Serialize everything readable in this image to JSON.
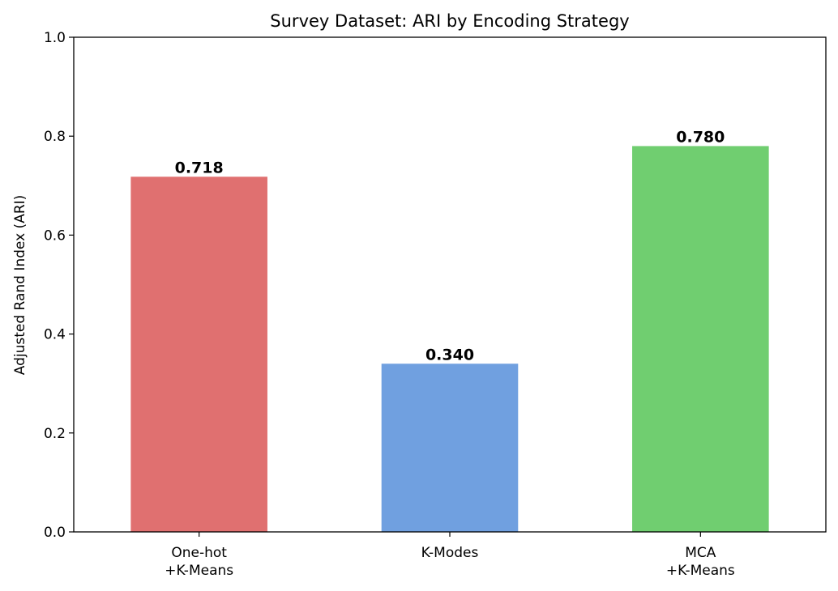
{
  "chart_data": {
    "type": "bar",
    "title": "Survey Dataset: ARI by Encoding Strategy",
    "xlabel": "",
    "ylabel": "Adjusted Rand Index (ARI)",
    "ylim": [
      0,
      1.0
    ],
    "yticks": [
      0.0,
      0.2,
      0.4,
      0.6,
      0.8,
      1.0
    ],
    "ytick_labels": [
      "0.0",
      "0.2",
      "0.4",
      "0.6",
      "0.8",
      "1.0"
    ],
    "categories": [
      [
        "One-hot",
        "+K-Means"
      ],
      [
        "K-Modes"
      ],
      [
        "MCA",
        "+K-Means"
      ]
    ],
    "values": [
      0.718,
      0.34,
      0.78
    ],
    "data_labels": [
      "0.718",
      "0.340",
      "0.780"
    ],
    "colors": [
      "#e07070",
      "#70a0e0",
      "#70ce70"
    ],
    "grid": false,
    "legend": "none"
  }
}
